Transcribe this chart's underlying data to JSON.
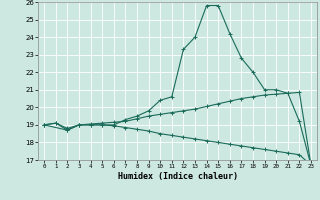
{
  "xlabel": "Humidex (Indice chaleur)",
  "bg_color": "#cce8e0",
  "line_color": "#1a6b5a",
  "grid_color": "#ffffff",
  "xlim": [
    -0.5,
    23.5
  ],
  "ylim": [
    17,
    26
  ],
  "xticks": [
    0,
    1,
    2,
    3,
    4,
    5,
    6,
    7,
    8,
    9,
    10,
    11,
    12,
    13,
    14,
    15,
    16,
    17,
    18,
    19,
    20,
    21,
    22,
    23
  ],
  "yticks": [
    17,
    18,
    19,
    20,
    21,
    22,
    23,
    24,
    25,
    26
  ],
  "peak_x": [
    0,
    1,
    2,
    3,
    4,
    5,
    6,
    7,
    8,
    9,
    10,
    11,
    12,
    13,
    14,
    15,
    16,
    17,
    18,
    19,
    20,
    21,
    22,
    23
  ],
  "peak_y": [
    19.0,
    19.1,
    18.7,
    19.0,
    19.0,
    19.0,
    19.0,
    19.3,
    19.5,
    19.8,
    20.4,
    20.6,
    23.3,
    24.0,
    25.8,
    25.8,
    24.2,
    22.8,
    22.0,
    21.0,
    21.0,
    20.8,
    19.2,
    16.7
  ],
  "rise_x": [
    0,
    1,
    2,
    3,
    4,
    5,
    6,
    7,
    8,
    9,
    10,
    11,
    12,
    13,
    14,
    15,
    16,
    17,
    18,
    19,
    20,
    21,
    22,
    23
  ],
  "rise_y": [
    19.0,
    19.1,
    18.8,
    19.0,
    19.05,
    19.1,
    19.15,
    19.2,
    19.35,
    19.5,
    19.6,
    19.7,
    19.8,
    19.9,
    20.05,
    20.2,
    20.35,
    20.5,
    20.6,
    20.7,
    20.75,
    20.8,
    20.85,
    16.7
  ],
  "decline_x": [
    0,
    2,
    3,
    4,
    5,
    6,
    7,
    8,
    9,
    10,
    11,
    12,
    13,
    14,
    15,
    16,
    17,
    18,
    19,
    20,
    21,
    22,
    23
  ],
  "decline_y": [
    19.0,
    18.7,
    19.0,
    19.0,
    19.0,
    18.95,
    18.85,
    18.75,
    18.65,
    18.5,
    18.4,
    18.3,
    18.2,
    18.1,
    18.0,
    17.9,
    17.8,
    17.7,
    17.6,
    17.5,
    17.4,
    17.3,
    16.7
  ]
}
